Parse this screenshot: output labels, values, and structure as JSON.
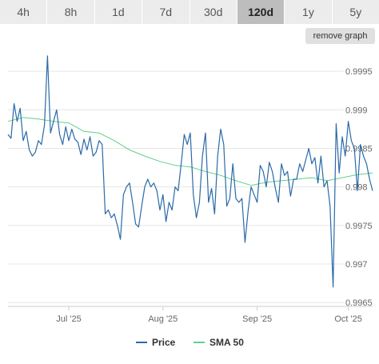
{
  "range_tabs": [
    {
      "label": "4h",
      "active": false
    },
    {
      "label": "8h",
      "active": false
    },
    {
      "label": "1d",
      "active": false
    },
    {
      "label": "7d",
      "active": false
    },
    {
      "label": "30d",
      "active": false
    },
    {
      "label": "120d",
      "active": true
    },
    {
      "label": "1y",
      "active": false
    },
    {
      "label": "5y",
      "active": false
    }
  ],
  "remove_graph_label": "remove graph",
  "colors": {
    "price": "#2a6aa8",
    "sma": "#5fd08a",
    "grid": "#e6e6e6"
  },
  "chart_data": {
    "type": "line",
    "ylim": [
      0.99645,
      0.99975
    ],
    "xlim": [
      0,
      120
    ],
    "y_ticks": [
      0.9965,
      0.997,
      0.9975,
      0.998,
      0.9985,
      0.999,
      0.9995
    ],
    "y_tick_labels": [
      "0.9965",
      "0.997",
      "0.9975",
      "0.998",
      "0.9985",
      "0.999",
      "0.9995"
    ],
    "x_ticks": [
      {
        "label": "Jul '25",
        "x": 20
      },
      {
        "label": "Aug '25",
        "x": 51
      },
      {
        "label": "Sep '25",
        "x": 82
      },
      {
        "label": "Oct '25",
        "x": 112
      }
    ],
    "grid": true,
    "legend_position": "bottom",
    "series": [
      {
        "name": "Price",
        "color_key": "price",
        "points": [
          [
            0,
            0.99868
          ],
          [
            1,
            0.99863
          ],
          [
            2,
            0.99908
          ],
          [
            3,
            0.99885
          ],
          [
            4,
            0.99902
          ],
          [
            5,
            0.9986
          ],
          [
            6,
            0.99872
          ],
          [
            7,
            0.99848
          ],
          [
            8,
            0.9984
          ],
          [
            9,
            0.99845
          ],
          [
            10,
            0.9986
          ],
          [
            11,
            0.99855
          ],
          [
            12,
            0.9988
          ],
          [
            13,
            0.9997
          ],
          [
            14,
            0.9987
          ],
          [
            15,
            0.99885
          ],
          [
            16,
            0.999
          ],
          [
            17,
            0.99868
          ],
          [
            18,
            0.99855
          ],
          [
            19,
            0.99878
          ],
          [
            20,
            0.9986
          ],
          [
            21,
            0.99875
          ],
          [
            22,
            0.99862
          ],
          [
            23,
            0.99858
          ],
          [
            24,
            0.99842
          ],
          [
            25,
            0.99862
          ],
          [
            26,
            0.99848
          ],
          [
            27,
            0.99865
          ],
          [
            28,
            0.9984
          ],
          [
            29,
            0.99845
          ],
          [
            30,
            0.9986
          ],
          [
            31,
            0.99855
          ],
          [
            32,
            0.99765
          ],
          [
            33,
            0.9977
          ],
          [
            34,
            0.9976
          ],
          [
            35,
            0.99765
          ],
          [
            36,
            0.9975
          ],
          [
            37,
            0.99732
          ],
          [
            38,
            0.9979
          ],
          [
            39,
            0.998
          ],
          [
            40,
            0.99805
          ],
          [
            41,
            0.9978
          ],
          [
            42,
            0.99752
          ],
          [
            43,
            0.99748
          ],
          [
            44,
            0.99775
          ],
          [
            45,
            0.998
          ],
          [
            46,
            0.9981
          ],
          [
            47,
            0.998
          ],
          [
            48,
            0.99805
          ],
          [
            49,
            0.99795
          ],
          [
            50,
            0.9977
          ],
          [
            51,
            0.9979
          ],
          [
            52,
            0.99755
          ],
          [
            53,
            0.9978
          ],
          [
            54,
            0.9977
          ],
          [
            55,
            0.998
          ],
          [
            56,
            0.99795
          ],
          [
            57,
            0.9983
          ],
          [
            58,
            0.99868
          ],
          [
            59,
            0.99855
          ],
          [
            60,
            0.9987
          ],
          [
            61,
            0.9979
          ],
          [
            62,
            0.9976
          ],
          [
            63,
            0.9978
          ],
          [
            64,
            0.9984
          ],
          [
            65,
            0.9987
          ],
          [
            66,
            0.9978
          ],
          [
            67,
            0.99798
          ],
          [
            68,
            0.99765
          ],
          [
            69,
            0.9984
          ],
          [
            70,
            0.99875
          ],
          [
            71,
            0.99855
          ],
          [
            72,
            0.99775
          ],
          [
            73,
            0.99785
          ],
          [
            74,
            0.9983
          ],
          [
            75,
            0.99785
          ],
          [
            76,
            0.9978
          ],
          [
            77,
            0.99785
          ],
          [
            78,
            0.99728
          ],
          [
            79,
            0.99768
          ],
          [
            80,
            0.998
          ],
          [
            81,
            0.9979
          ],
          [
            82,
            0.9978
          ],
          [
            83,
            0.99828
          ],
          [
            84,
            0.9982
          ],
          [
            85,
            0.998
          ],
          [
            86,
            0.99832
          ],
          [
            87,
            0.9982
          ],
          [
            88,
            0.99798
          ],
          [
            89,
            0.9978
          ],
          [
            90,
            0.9983
          ],
          [
            91,
            0.99815
          ],
          [
            92,
            0.9982
          ],
          [
            93,
            0.99788
          ],
          [
            94,
            0.9981
          ],
          [
            95,
            0.9981
          ],
          [
            96,
            0.9983
          ],
          [
            97,
            0.9982
          ],
          [
            98,
            0.99835
          ],
          [
            99,
            0.9985
          ],
          [
            100,
            0.9983
          ],
          [
            101,
            0.99838
          ],
          [
            102,
            0.99805
          ],
          [
            103,
            0.9984
          ],
          [
            104,
            0.998
          ],
          [
            105,
            0.99808
          ],
          [
            106,
            0.99775
          ],
          [
            107,
            0.9967
          ],
          [
            108,
            0.99882
          ],
          [
            109,
            0.99818
          ],
          [
            110,
            0.99865
          ],
          [
            111,
            0.9984
          ],
          [
            112,
            0.99885
          ],
          [
            113,
            0.9986
          ],
          [
            114,
            0.9985
          ],
          [
            115,
            0.99795
          ],
          [
            116,
            0.99855
          ],
          [
            117,
            0.9984
          ],
          [
            118,
            0.9983
          ],
          [
            119,
            0.9981
          ],
          [
            120,
            0.99795
          ]
        ]
      },
      {
        "name": "SMA 50",
        "color_key": "sma",
        "points": [
          [
            0,
            0.99885
          ],
          [
            5,
            0.9989
          ],
          [
            10,
            0.99888
          ],
          [
            15,
            0.99885
          ],
          [
            20,
            0.99883
          ],
          [
            25,
            0.99872
          ],
          [
            30,
            0.9987
          ],
          [
            35,
            0.9986
          ],
          [
            40,
            0.99848
          ],
          [
            45,
            0.9984
          ],
          [
            50,
            0.99833
          ],
          [
            55,
            0.99828
          ],
          [
            60,
            0.99826
          ],
          [
            65,
            0.9982
          ],
          [
            70,
            0.99815
          ],
          [
            75,
            0.99808
          ],
          [
            80,
            0.99802
          ],
          [
            85,
            0.99806
          ],
          [
            90,
            0.99808
          ],
          [
            95,
            0.9981
          ],
          [
            100,
            0.99812
          ],
          [
            105,
            0.99808
          ],
          [
            110,
            0.99812
          ],
          [
            115,
            0.99816
          ],
          [
            120,
            0.99818
          ]
        ]
      }
    ]
  }
}
